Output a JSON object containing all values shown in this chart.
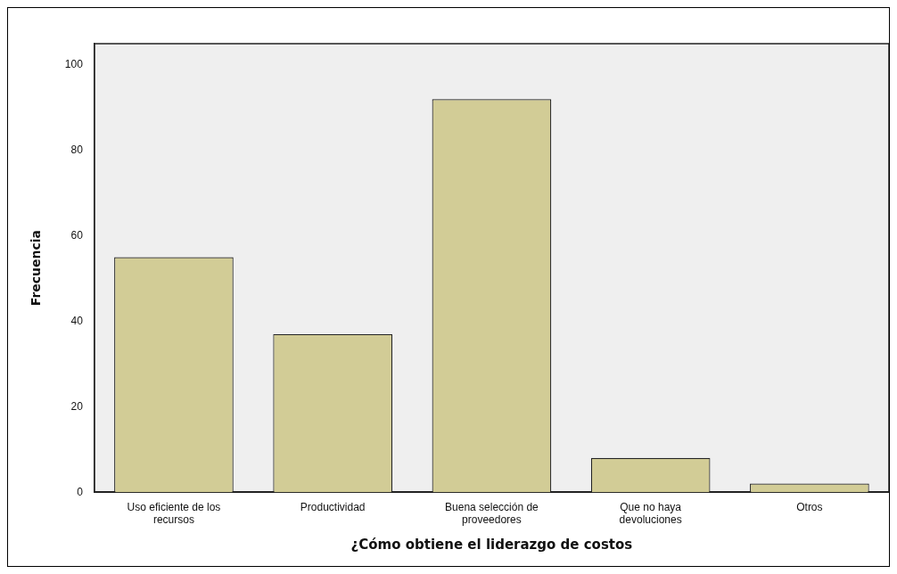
{
  "chart_data": {
    "type": "bar",
    "xlabel": "¿Cómo obtiene el liderazgo de costos",
    "ylabel": "Frecuencia",
    "categories": [
      "Uso eficiente de los recursos",
      "Productividad",
      "Buena selección de proveedores",
      "Que no haya devoluciones",
      "Otros"
    ],
    "values": [
      55,
      37,
      92,
      8,
      2
    ],
    "color": "#d2cc96",
    "ylim": [
      0,
      105
    ],
    "yticks": [
      0,
      20,
      40,
      60,
      80,
      100
    ],
    "grid": false,
    "legend": false
  }
}
